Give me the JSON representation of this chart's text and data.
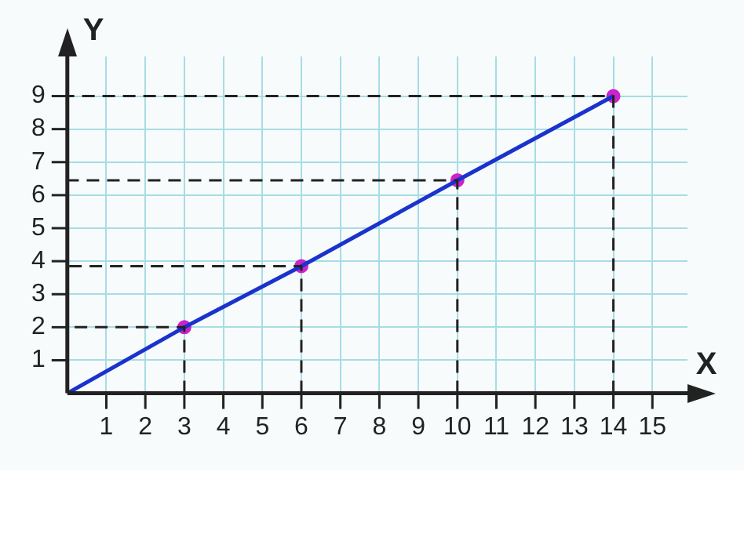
{
  "chart_data": {
    "type": "line",
    "xlabel": "X",
    "ylabel": "Y",
    "xlim": [
      0,
      15.9
    ],
    "ylim": [
      0,
      10.2
    ],
    "xticks": [
      1,
      2,
      3,
      4,
      5,
      6,
      7,
      8,
      9,
      10,
      11,
      12,
      13,
      14,
      15
    ],
    "yticks": [
      1,
      2,
      3,
      4,
      5,
      6,
      7,
      8,
      9
    ],
    "grid": true,
    "legend": false,
    "series": [
      {
        "color": "#222222",
        "x": [
          3,
          3,
          0
        ],
        "values": [
          0,
          2,
          2
        ],
        "marker": "none",
        "line_style": "dashed"
      },
      {
        "color": "#222222",
        "x": [
          6,
          6,
          0
        ],
        "values": [
          0,
          3.85,
          3.85
        ],
        "marker": "none",
        "line_style": "dashed"
      },
      {
        "color": "#222222",
        "x": [
          10,
          10,
          0
        ],
        "values": [
          0,
          6.45,
          6.45
        ],
        "marker": "none",
        "line_style": "dashed"
      },
      {
        "color": "#222222",
        "x": [
          14,
          14,
          0
        ],
        "values": [
          0,
          9,
          9
        ],
        "marker": "none",
        "line_style": "dashed"
      },
      {
        "color": "#1a33cc",
        "x": [
          0,
          3,
          6,
          10,
          14
        ],
        "values": [
          0,
          2,
          3.85,
          6.45,
          9
        ],
        "marker": "none",
        "line_style": "solid"
      },
      {
        "type": "scatter",
        "color": "#cc22cc",
        "x": [
          3,
          6,
          10,
          14
        ],
        "values": [
          2,
          3.85,
          6.45,
          9
        ],
        "marker": "circle"
      }
    ]
  }
}
